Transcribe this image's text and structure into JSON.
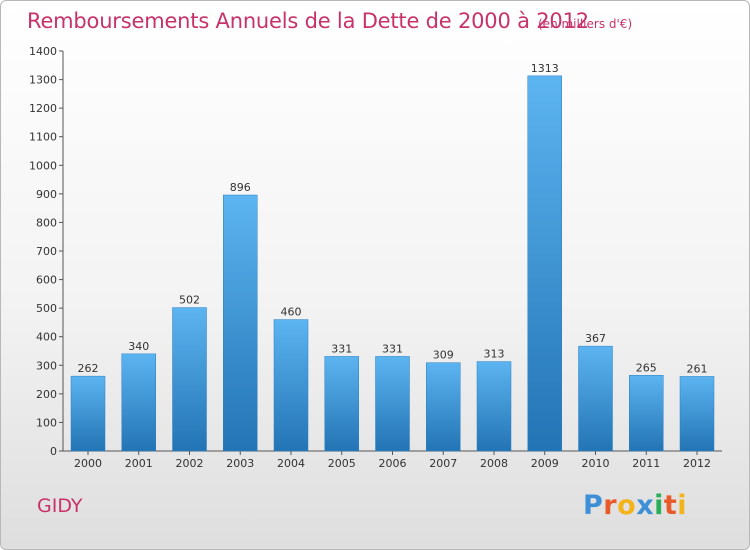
{
  "title": "Remboursements Annuels de la Dette de 2000 à 2012",
  "subtitle": "(en milliers d'€)",
  "commune": "GIDY",
  "logo": {
    "letters": [
      "P",
      "r",
      "o",
      "x",
      "i",
      "t",
      "i"
    ],
    "colors": [
      "#3d8fd6",
      "#e85a2a",
      "#f2b31b",
      "#3d8fd6",
      "#2bae5a",
      "#e85a2a",
      "#f2b31b"
    ]
  },
  "colors": {
    "bar": "#3d9ae2",
    "bar_light": "#5db3ef",
    "bar_dark": "#2478b8",
    "title": "#c8326a"
  },
  "chart_data": {
    "type": "bar",
    "categories": [
      "2000",
      "2001",
      "2002",
      "2003",
      "2004",
      "2005",
      "2006",
      "2007",
      "2008",
      "2009",
      "2010",
      "2011",
      "2012"
    ],
    "values": [
      262,
      340,
      502,
      896,
      460,
      331,
      331,
      309,
      313,
      1313,
      367,
      265,
      261
    ],
    "title": "Remboursements Annuels de la Dette de 2000 à 2012",
    "xlabel": "",
    "ylabel": "",
    "ylim": [
      0,
      1400
    ],
    "yticks": [
      0,
      100,
      200,
      300,
      400,
      500,
      600,
      700,
      800,
      900,
      1000,
      1100,
      1200,
      1300,
      1400
    ],
    "grid": false,
    "legend": "none"
  }
}
